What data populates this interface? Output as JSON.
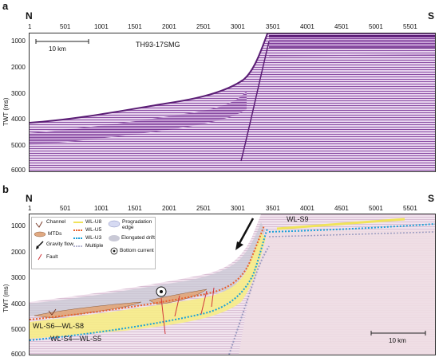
{
  "panel_a": {
    "label": "a",
    "left_dir": "N",
    "right_dir": "S",
    "line_name": "TH93-17SMG",
    "scale_label": "10 km",
    "y_axis_label": "TWT (ms)"
  },
  "panel_b": {
    "label": "b",
    "left_dir": "N",
    "right_dir": "S",
    "scale_label": "10 km",
    "y_axis_label": "TWT (ms)",
    "units": [
      "WL-S9",
      "WL-S6—WL-S8",
      "WL-S4—WL-S5"
    ],
    "legend": {
      "channel": "Channel",
      "mtds": "MTDs",
      "gravity_flow": "Gravity flow",
      "fault": "Fault",
      "wl_u8": "WL-U8",
      "wl_u5": "WL-U5",
      "wl_u3": "WL-U3",
      "multiple": "Multiple",
      "progradation": "Progradation edge",
      "drift": "Elongated drift",
      "bottom_current": "Bottom current"
    }
  },
  "x_ticks": [
    "1",
    "501",
    "1001",
    "1501",
    "2001",
    "2501",
    "3001",
    "3501",
    "4001",
    "4501",
    "5001",
    "5501"
  ],
  "y_ticks_a": [
    "1000",
    "2000",
    "3000",
    "4000",
    "5000",
    "6000"
  ],
  "y_ticks_b": [
    "1000",
    "2000",
    "3000",
    "4000",
    "5000",
    "6000"
  ],
  "colors": {
    "seismic_dark": "#6b2a86",
    "seismic_light": "#d9b8e6",
    "wl_u8": "#f0e35a",
    "wl_u5": "#e8602c",
    "wl_u3": "#1aa0d8",
    "multiple": "#9b9bc0",
    "mtd": "#e0a982",
    "fault": "#d0343a"
  }
}
